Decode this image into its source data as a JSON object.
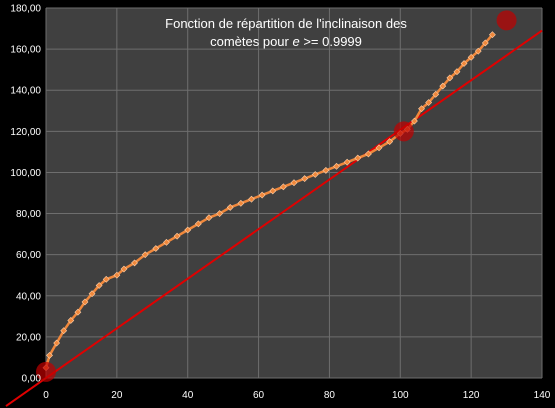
{
  "chart_data": {
    "type": "scatter",
    "title_line1": "Fonction de répartition de l'inclinaison des",
    "title_line2_prefix": "comètes pour ",
    "title_line2_var": "e",
    "title_line2_suffix": " >= 0.9999",
    "xlabel": "",
    "ylabel": "",
    "xlim": [
      0,
      140
    ],
    "ylim": [
      0,
      180
    ],
    "x_ticks": [
      0,
      20,
      40,
      60,
      80,
      100,
      120,
      140
    ],
    "y_ticks": [
      0,
      20,
      40,
      60,
      80,
      100,
      120,
      140,
      160,
      180
    ],
    "y_tick_labels": [
      "0,00",
      "20,00",
      "40,00",
      "60,00",
      "80,00",
      "100,00",
      "120,00",
      "140,00",
      "160,00",
      "180,00"
    ],
    "x_tick_labels": [
      "0",
      "20",
      "40",
      "60",
      "80",
      "100",
      "120",
      "140"
    ],
    "grid": true,
    "legend": "none",
    "colors": {
      "plot_background": "#404040",
      "grid": "#6e6e6e",
      "markers": "#f0883c",
      "reference_line": "#e00000",
      "highlight": "#c00000",
      "text": "#ffffff"
    },
    "series": [
      {
        "values_xy": [
          [
            0,
            5
          ],
          [
            1,
            11
          ],
          [
            3,
            17
          ],
          [
            5,
            23
          ],
          [
            7,
            28
          ],
          [
            9,
            32
          ],
          [
            11,
            37
          ],
          [
            13,
            41
          ],
          [
            15,
            45
          ],
          [
            17,
            48
          ],
          [
            20,
            50
          ],
          [
            22,
            53
          ],
          [
            25,
            56
          ],
          [
            28,
            60
          ],
          [
            31,
            63
          ],
          [
            34,
            66
          ],
          [
            37,
            69
          ],
          [
            40,
            72
          ],
          [
            43,
            75
          ],
          [
            46,
            78
          ],
          [
            49,
            80
          ],
          [
            52,
            83
          ],
          [
            55,
            85
          ],
          [
            58,
            87
          ],
          [
            61,
            89
          ],
          [
            64,
            91
          ],
          [
            67,
            93
          ],
          [
            70,
            95
          ],
          [
            73,
            97
          ],
          [
            76,
            99
          ],
          [
            79,
            101
          ],
          [
            82,
            103
          ],
          [
            85,
            105
          ],
          [
            88,
            107
          ],
          [
            91,
            109
          ],
          [
            94,
            112
          ],
          [
            97,
            115
          ],
          [
            100,
            119
          ],
          [
            102,
            121
          ],
          [
            104,
            125
          ],
          [
            106,
            131
          ],
          [
            108,
            134
          ],
          [
            110,
            138
          ],
          [
            112,
            142
          ],
          [
            114,
            146
          ],
          [
            116,
            149
          ],
          [
            118,
            153
          ],
          [
            120,
            156
          ],
          [
            122,
            159
          ],
          [
            124,
            163
          ],
          [
            126,
            167
          ]
        ]
      }
    ],
    "reference_line": {
      "from": [
        0,
        0
      ],
      "to": [
        140,
        169
      ]
    },
    "highlight_points": [
      [
        0,
        3
      ],
      [
        101,
        120
      ],
      [
        130,
        174
      ]
    ]
  }
}
